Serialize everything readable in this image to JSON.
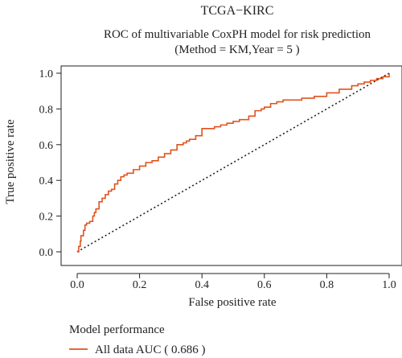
{
  "figure_title": "TCGA−KIRC",
  "chart_data": {
    "type": "line",
    "title": "ROC of multivariable CoxPH model for risk prediction",
    "subtitle": "(Method = KM,Year = 5 )",
    "xlabel": "False positive rate",
    "ylabel": "True positive rate",
    "xlim": [
      0,
      1
    ],
    "ylim": [
      0,
      1
    ],
    "x_ticks": [
      "0.0",
      "0.2",
      "0.4",
      "0.6",
      "0.8",
      "1.0"
    ],
    "y_ticks": [
      "0.0",
      "0.2",
      "0.4",
      "0.6",
      "0.8",
      "1.0"
    ],
    "grid": false,
    "reference_line": {
      "from": [
        0,
        0
      ],
      "to": [
        1,
        1
      ],
      "style": "dotted"
    },
    "series": [
      {
        "name": "All data AUC ( 0.686 )",
        "color": "#e0531f",
        "x": [
          0.0,
          0.005,
          0.01,
          0.012,
          0.02,
          0.025,
          0.03,
          0.04,
          0.05,
          0.055,
          0.06,
          0.07,
          0.08,
          0.09,
          0.1,
          0.11,
          0.12,
          0.13,
          0.14,
          0.15,
          0.16,
          0.18,
          0.2,
          0.22,
          0.24,
          0.25,
          0.26,
          0.28,
          0.3,
          0.32,
          0.34,
          0.35,
          0.36,
          0.38,
          0.4,
          0.42,
          0.44,
          0.46,
          0.48,
          0.5,
          0.52,
          0.55,
          0.57,
          0.59,
          0.6,
          0.62,
          0.64,
          0.66,
          0.68,
          0.72,
          0.76,
          0.8,
          0.84,
          0.88,
          0.9,
          0.92,
          0.94,
          0.96,
          0.98,
          1.0
        ],
        "y": [
          0.0,
          0.03,
          0.06,
          0.09,
          0.12,
          0.15,
          0.16,
          0.17,
          0.2,
          0.22,
          0.24,
          0.28,
          0.3,
          0.32,
          0.34,
          0.35,
          0.38,
          0.4,
          0.42,
          0.43,
          0.44,
          0.46,
          0.48,
          0.5,
          0.51,
          0.51,
          0.53,
          0.55,
          0.57,
          0.6,
          0.61,
          0.62,
          0.63,
          0.65,
          0.69,
          0.69,
          0.7,
          0.71,
          0.72,
          0.73,
          0.74,
          0.76,
          0.79,
          0.8,
          0.81,
          0.83,
          0.84,
          0.85,
          0.85,
          0.86,
          0.87,
          0.89,
          0.91,
          0.93,
          0.94,
          0.95,
          0.96,
          0.97,
          0.98,
          1.0
        ]
      }
    ]
  },
  "legend": {
    "title": "Model performance",
    "items": [
      {
        "label": "All data AUC ( 0.686 )",
        "color": "#e0531f"
      }
    ]
  }
}
